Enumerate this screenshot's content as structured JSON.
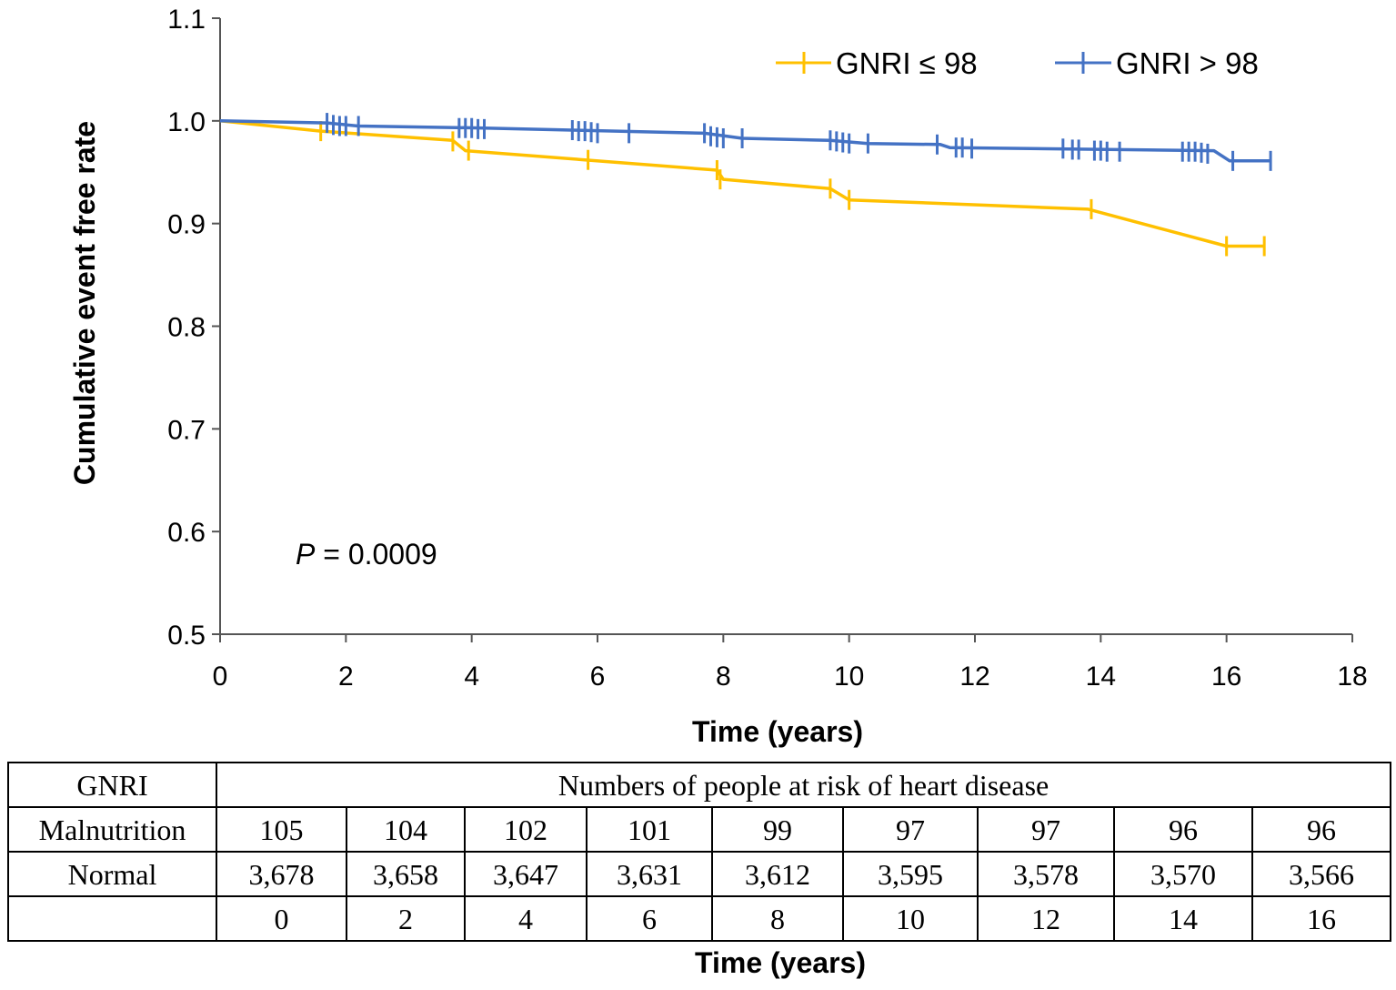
{
  "chart_data": {
    "type": "line",
    "subtype": "kaplan-meier",
    "ylabel": "Cumulative event free rate",
    "xlabel": "Time (years)",
    "xlim": [
      0,
      18
    ],
    "ylim": [
      0.5,
      1.1
    ],
    "xticks": [
      0,
      2,
      4,
      6,
      8,
      10,
      12,
      14,
      16,
      18
    ],
    "xtick_labels": [
      "0",
      "2",
      "4",
      "6",
      "8",
      "10",
      "12",
      "14",
      "16",
      "18"
    ],
    "yticks": [
      0.5,
      0.6,
      0.7,
      0.8,
      0.9,
      1.0,
      1.1
    ],
    "ytick_labels": [
      "0.5",
      "0.6",
      "0.7",
      "0.8",
      "0.9",
      "1.0",
      "1.1"
    ],
    "grid": false,
    "legend_position": "top-right",
    "annotation": {
      "italic": "P",
      "rest": " = 0.0009"
    },
    "series": [
      {
        "name": "GNRI ≤ 98",
        "color": "#FFC000",
        "path": [
          [
            0,
            1.0
          ],
          [
            1.6,
            0.99
          ],
          [
            3.7,
            0.981
          ],
          [
            3.9,
            0.971
          ],
          [
            5.8,
            0.962
          ],
          [
            7.9,
            0.952
          ],
          [
            8.0,
            0.943
          ],
          [
            9.7,
            0.934
          ],
          [
            10.0,
            0.923
          ],
          [
            13.8,
            0.914
          ],
          [
            16.0,
            0.878
          ],
          [
            16.6,
            0.878
          ]
        ],
        "censors": [
          [
            1.6,
            0.99
          ],
          [
            3.7,
            0.98
          ],
          [
            3.95,
            0.971
          ],
          [
            5.85,
            0.962
          ],
          [
            7.9,
            0.952
          ],
          [
            7.95,
            0.943
          ],
          [
            9.7,
            0.934
          ],
          [
            10.0,
            0.923
          ],
          [
            13.85,
            0.914
          ],
          [
            16.0,
            0.878
          ],
          [
            16.6,
            0.878
          ]
        ]
      },
      {
        "name": "GNRI > 98",
        "color": "#4472C4",
        "path": [
          [
            0,
            1.0
          ],
          [
            1.7,
            0.998
          ],
          [
            2.2,
            0.995
          ],
          [
            4.2,
            0.993
          ],
          [
            5.6,
            0.991
          ],
          [
            7.7,
            0.988
          ],
          [
            8.3,
            0.983
          ],
          [
            9.7,
            0.981
          ],
          [
            10.3,
            0.978
          ],
          [
            11.45,
            0.977
          ],
          [
            11.6,
            0.974
          ],
          [
            15.8,
            0.971
          ],
          [
            16.05,
            0.961
          ],
          [
            16.7,
            0.961
          ]
        ],
        "censors": [
          [
            1.7,
            0.998
          ],
          [
            1.8,
            0.996
          ],
          [
            1.9,
            0.995
          ],
          [
            2.0,
            0.995
          ],
          [
            2.2,
            0.995
          ],
          [
            3.8,
            0.993
          ],
          [
            3.9,
            0.993
          ],
          [
            4.0,
            0.993
          ],
          [
            4.1,
            0.992
          ],
          [
            4.2,
            0.992
          ],
          [
            5.6,
            0.991
          ],
          [
            5.7,
            0.99
          ],
          [
            5.8,
            0.99
          ],
          [
            5.9,
            0.989
          ],
          [
            6.0,
            0.988
          ],
          [
            6.5,
            0.988
          ],
          [
            7.7,
            0.988
          ],
          [
            7.8,
            0.985
          ],
          [
            7.9,
            0.984
          ],
          [
            8.0,
            0.983
          ],
          [
            8.3,
            0.983
          ],
          [
            9.7,
            0.981
          ],
          [
            9.8,
            0.98
          ],
          [
            9.9,
            0.979
          ],
          [
            10.0,
            0.978
          ],
          [
            10.3,
            0.978
          ],
          [
            11.4,
            0.977
          ],
          [
            11.7,
            0.974
          ],
          [
            11.8,
            0.974
          ],
          [
            11.95,
            0.973
          ],
          [
            13.4,
            0.973
          ],
          [
            13.55,
            0.972
          ],
          [
            13.65,
            0.972
          ],
          [
            13.9,
            0.971
          ],
          [
            14.0,
            0.971
          ],
          [
            14.1,
            0.97
          ],
          [
            14.3,
            0.97
          ],
          [
            15.3,
            0.97
          ],
          [
            15.4,
            0.97
          ],
          [
            15.5,
            0.97
          ],
          [
            15.6,
            0.969
          ],
          [
            15.7,
            0.968
          ],
          [
            16.1,
            0.961
          ],
          [
            16.7,
            0.961
          ]
        ]
      }
    ]
  },
  "risk_table": {
    "header_label": "GNRI",
    "header_title": "Numbers of people at risk of heart disease",
    "rows": [
      {
        "label": "Malnutrition",
        "values": [
          "105",
          "104",
          "102",
          "101",
          "99",
          "97",
          "97",
          "96",
          "96"
        ]
      },
      {
        "label": "Normal",
        "values": [
          "3,678",
          "3,658",
          "3,647",
          "3,631",
          "3,612",
          "3,595",
          "3,578",
          "3,570",
          "3,566"
        ]
      }
    ],
    "time_row": [
      "0",
      "2",
      "4",
      "6",
      "8",
      "10",
      "12",
      "14",
      "16"
    ],
    "xlabel": "Time (years)"
  }
}
